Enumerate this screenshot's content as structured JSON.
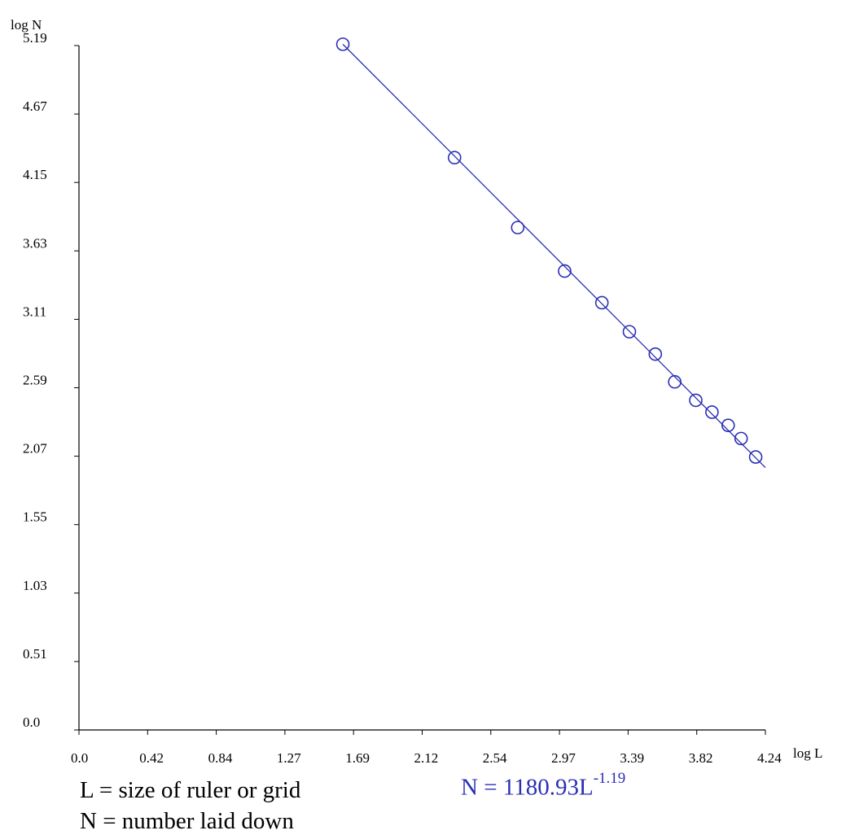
{
  "chart_data": {
    "type": "scatter",
    "xlabel": "log L",
    "ylabel": "log N",
    "xlim": [
      0.0,
      4.24
    ],
    "ylim": [
      0.0,
      5.19
    ],
    "x_ticks": [
      "0.0",
      "0.42",
      "0.84",
      "1.27",
      "1.69",
      "2.12",
      "2.54",
      "2.97",
      "3.39",
      "3.82",
      "4.24"
    ],
    "y_ticks": [
      "0.0",
      "0.51",
      "1.03",
      "1.55",
      "2.07",
      "2.59",
      "3.11",
      "3.63",
      "4.15",
      "4.67",
      "5.19"
    ],
    "grid": false,
    "colors": {
      "series": "#2b2fb5",
      "axis": "#000000"
    },
    "points": [
      {
        "x": 1.63,
        "y": 5.2
      },
      {
        "x": 2.32,
        "y": 4.34
      },
      {
        "x": 2.71,
        "y": 3.81
      },
      {
        "x": 3.0,
        "y": 3.48
      },
      {
        "x": 3.23,
        "y": 3.24
      },
      {
        "x": 3.4,
        "y": 3.02
      },
      {
        "x": 3.56,
        "y": 2.85
      },
      {
        "x": 3.68,
        "y": 2.64
      },
      {
        "x": 3.81,
        "y": 2.5
      },
      {
        "x": 3.91,
        "y": 2.41
      },
      {
        "x": 4.01,
        "y": 2.31
      },
      {
        "x": 4.09,
        "y": 2.21
      },
      {
        "x": 4.18,
        "y": 2.07
      }
    ],
    "fit_line": {
      "x": [
        1.63,
        4.24
      ],
      "y": [
        5.2,
        1.99
      ]
    }
  },
  "legend": {
    "line1": "L = size of ruler or grid",
    "line2": "N = number laid down"
  },
  "equation": {
    "base": "N = 1180.93L",
    "exponent": "-1.19"
  }
}
